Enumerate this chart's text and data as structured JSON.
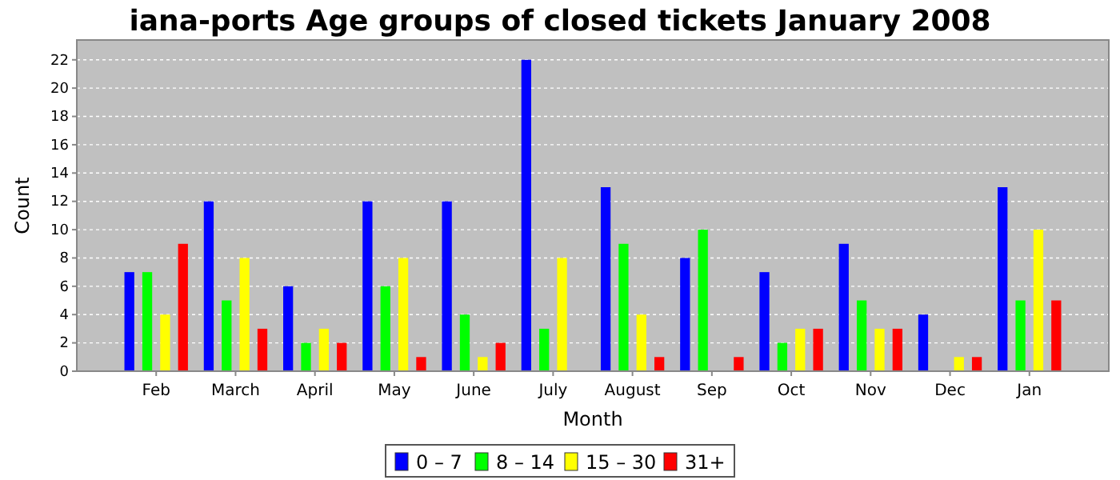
{
  "chart_data": {
    "type": "bar",
    "title": "iana-ports Age groups of closed tickets January 2008",
    "xlabel": "Month",
    "ylabel": "Count",
    "categories": [
      "Feb",
      "March",
      "April",
      "May",
      "June",
      "July",
      "August",
      "Sep",
      "Oct",
      "Nov",
      "Dec",
      "Jan"
    ],
    "series": [
      {
        "name": "0 – 7",
        "color": "#0000ff",
        "values": [
          7,
          12,
          6,
          12,
          12,
          22,
          13,
          8,
          7,
          9,
          4,
          13
        ]
      },
      {
        "name": "8 – 14",
        "color": "#00ff00",
        "values": [
          7,
          5,
          2,
          6,
          4,
          3,
          9,
          10,
          2,
          5,
          0,
          5
        ]
      },
      {
        "name": "15 – 30",
        "color": "#ffff00",
        "values": [
          4,
          8,
          3,
          8,
          1,
          8,
          4,
          0,
          3,
          3,
          1,
          10
        ]
      },
      {
        "name": "31+",
        "color": "#ff0000",
        "values": [
          9,
          3,
          2,
          1,
          2,
          0,
          1,
          1,
          3,
          3,
          1,
          5
        ]
      }
    ],
    "ylim": [
      0,
      23.4
    ],
    "yticks": [
      0,
      2,
      4,
      6,
      8,
      10,
      12,
      14,
      16,
      18,
      20,
      22
    ],
    "grid": "y",
    "legend": "bottom"
  }
}
